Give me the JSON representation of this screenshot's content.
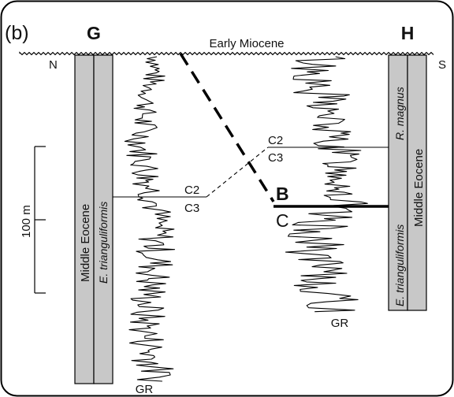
{
  "panel_label": "(b)",
  "wells": {
    "left": {
      "name": "G",
      "direction": "N",
      "log_label": "GR"
    },
    "right": {
      "name": "H",
      "direction": "S",
      "log_label": "GR"
    }
  },
  "unconformity_label": "Early Miocene",
  "columns": {
    "left": {
      "stage": "Middle Eocene",
      "zone": "E. trianguliformis"
    },
    "right": {
      "stage": "Middle Eocene",
      "zone_lower": "E. trianguliformis",
      "zone_upper": "R. magnus"
    }
  },
  "correlation": {
    "left_upper": "C2",
    "left_lower": "C3",
    "right_upper": "C2",
    "right_lower": "C3",
    "fault_upper": "B",
    "fault_lower": "C"
  },
  "scale_bar": {
    "label": "100 m"
  },
  "colors": {
    "column_fill": "#c8c8c8",
    "line": "#000000",
    "frame": "#000000"
  }
}
